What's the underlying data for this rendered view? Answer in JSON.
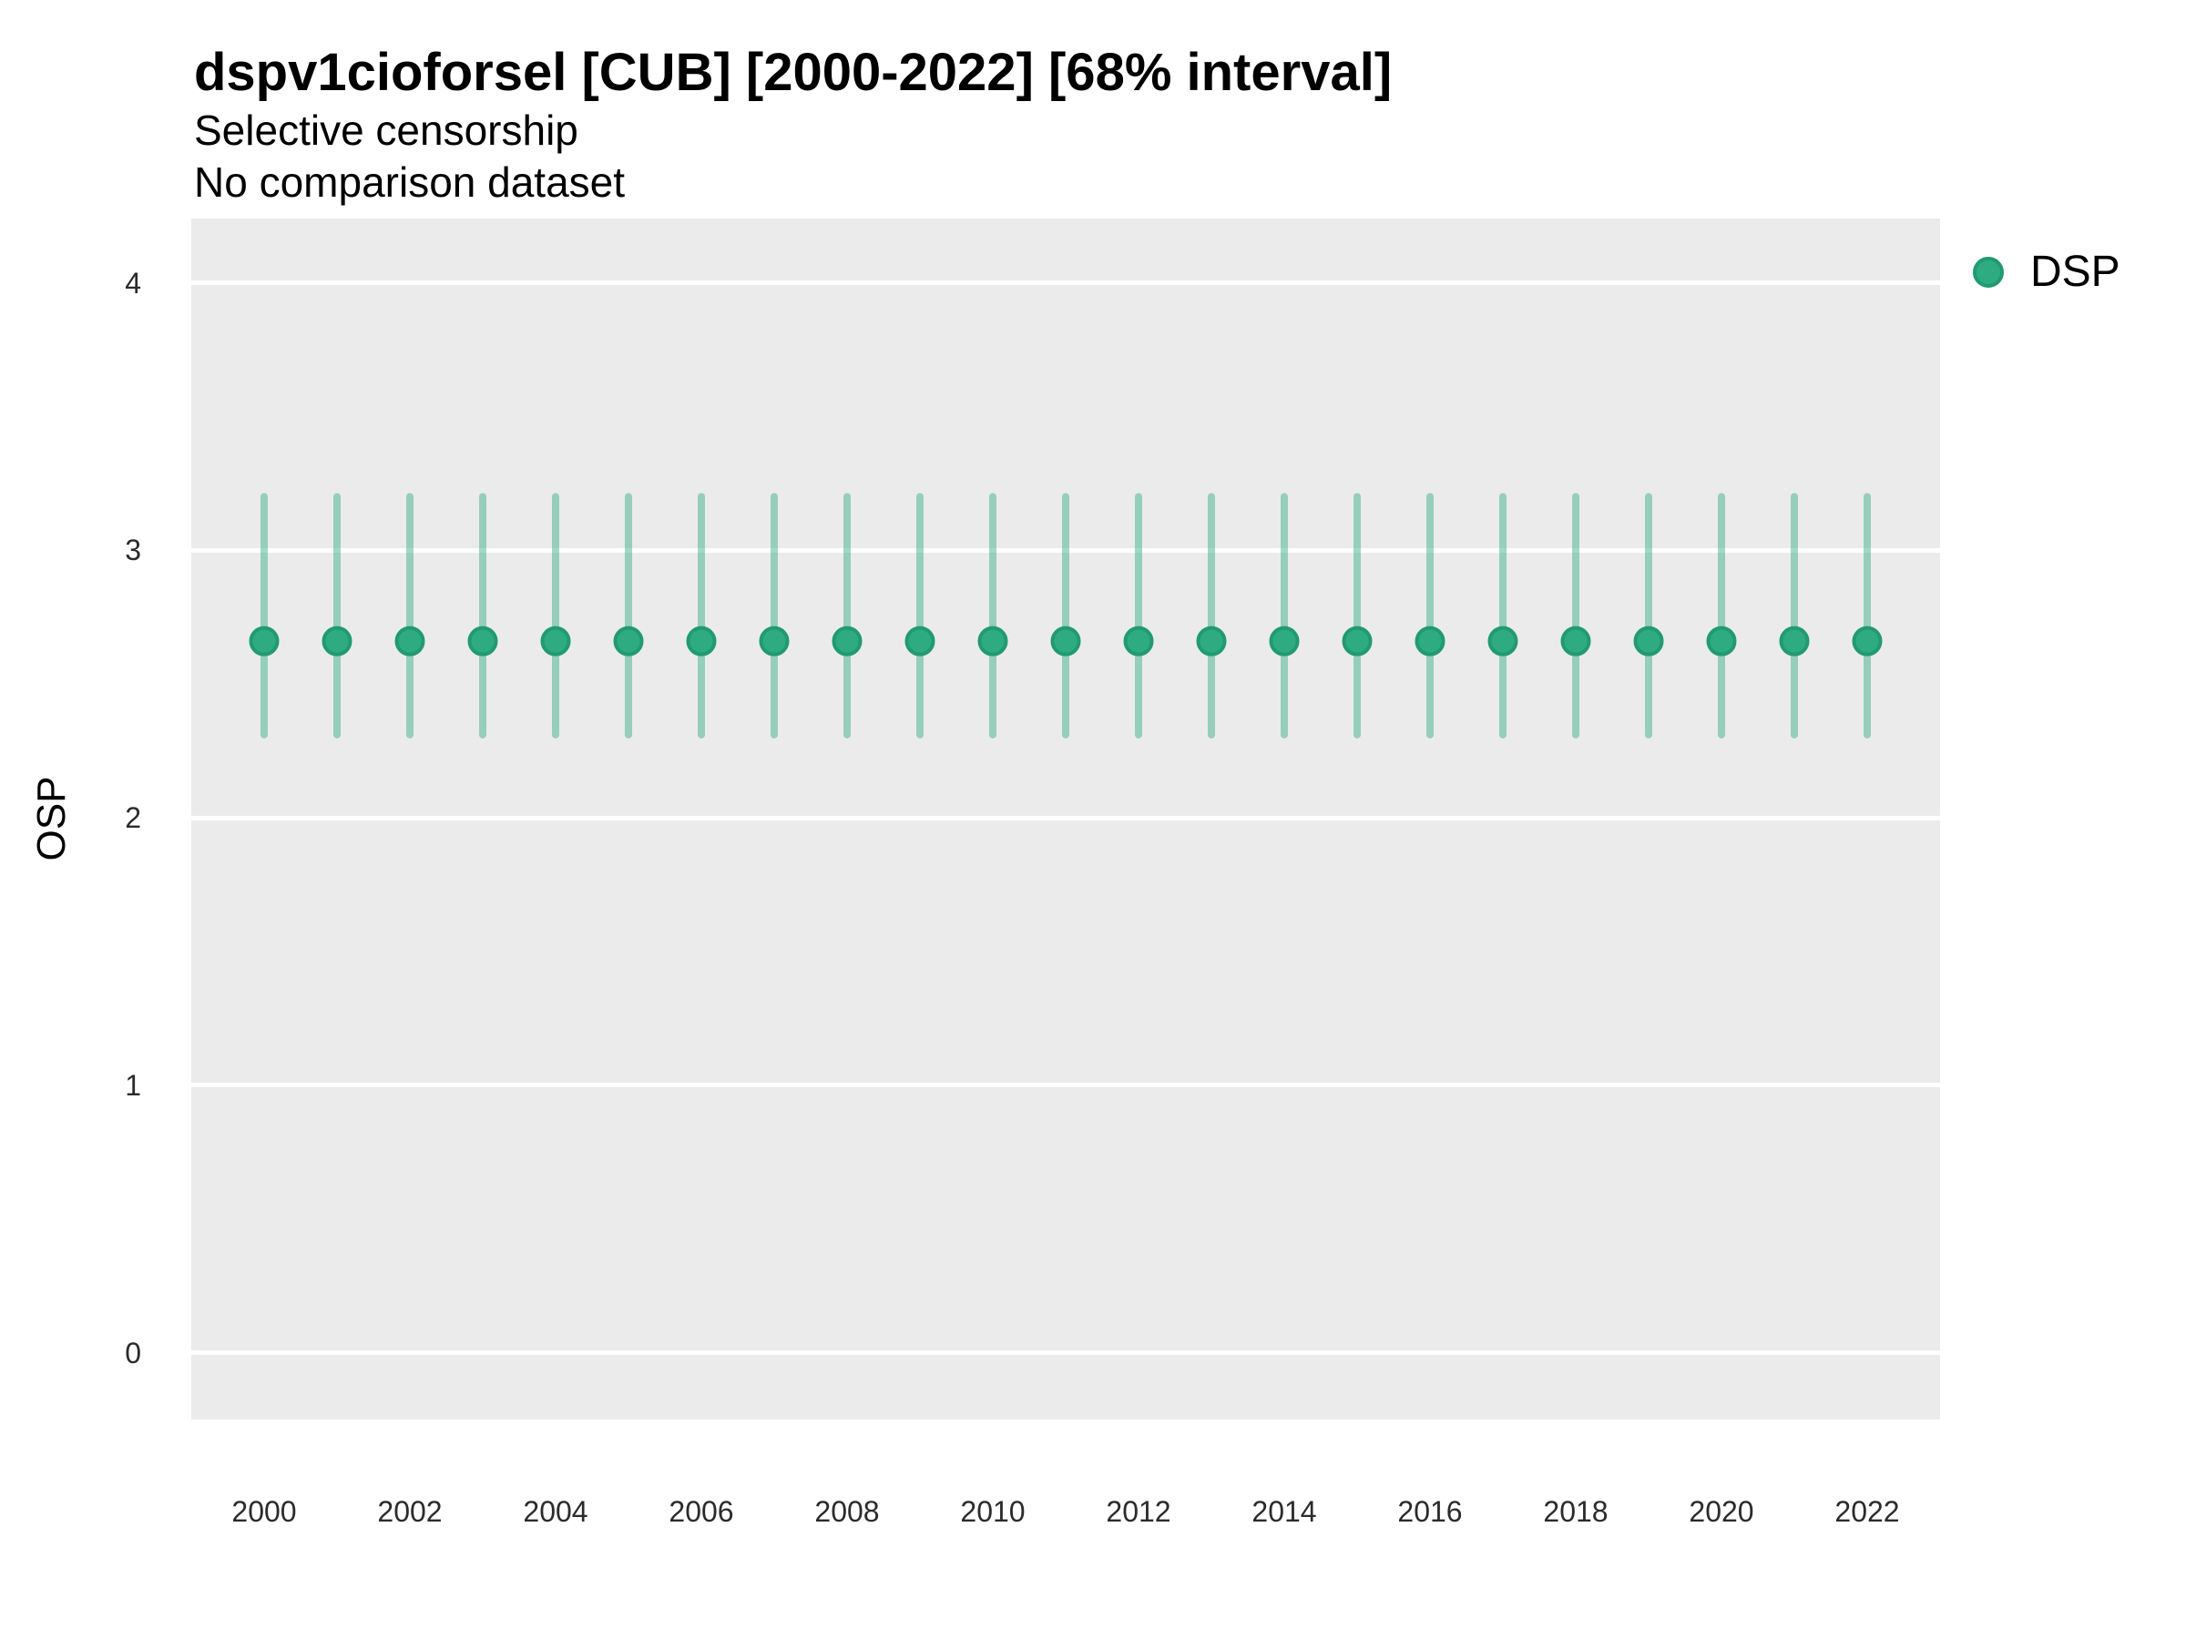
{
  "colors": {
    "point_fill": "#2fab82",
    "point_stroke": "#219a72",
    "interval_stroke": "rgba(47,171,130,0.45)",
    "panel_background": "#ebebeb",
    "gridline": "#ffffff",
    "title_text": "#000000",
    "axis_text": "#2b2b2b"
  },
  "chart_data": {
    "type": "pointrange",
    "title": "dspv1cioforsel [CUB] [2000-2022] [68% interval]",
    "subtitle": "Selective censorship",
    "note": "No comparison dataset",
    "ylabel": "OSP",
    "xlabel": "",
    "interval_level": "68% interval",
    "x": [
      2000,
      2001,
      2002,
      2003,
      2004,
      2005,
      2006,
      2007,
      2008,
      2009,
      2010,
      2011,
      2012,
      2013,
      2014,
      2015,
      2016,
      2017,
      2018,
      2019,
      2020,
      2021,
      2022
    ],
    "series": [
      {
        "name": "DSP",
        "estimate": [
          2.66,
          2.66,
          2.66,
          2.66,
          2.66,
          2.66,
          2.66,
          2.66,
          2.66,
          2.66,
          2.66,
          2.66,
          2.66,
          2.66,
          2.66,
          2.66,
          2.66,
          2.66,
          2.66,
          2.66,
          2.66,
          2.66,
          2.66
        ],
        "lower": [
          2.31,
          2.31,
          2.31,
          2.31,
          2.31,
          2.31,
          2.31,
          2.31,
          2.31,
          2.31,
          2.31,
          2.31,
          2.31,
          2.31,
          2.31,
          2.31,
          2.31,
          2.31,
          2.31,
          2.31,
          2.31,
          2.31,
          2.31
        ],
        "upper": [
          3.2,
          3.2,
          3.2,
          3.2,
          3.2,
          3.2,
          3.2,
          3.2,
          3.2,
          3.2,
          3.2,
          3.2,
          3.2,
          3.2,
          3.2,
          3.2,
          3.2,
          3.2,
          3.2,
          3.2,
          3.2,
          3.2,
          3.2
        ]
      }
    ],
    "xticks": [
      2000,
      2002,
      2004,
      2006,
      2008,
      2010,
      2012,
      2014,
      2016,
      2018,
      2020,
      2022
    ],
    "yticks": [
      0,
      1,
      2,
      3,
      4
    ],
    "xlim": [
      1999,
      2023
    ],
    "ylim": [
      -0.25,
      4.24
    ],
    "grid": "horizontal-major-only",
    "legend_position": "right-top-outside"
  }
}
